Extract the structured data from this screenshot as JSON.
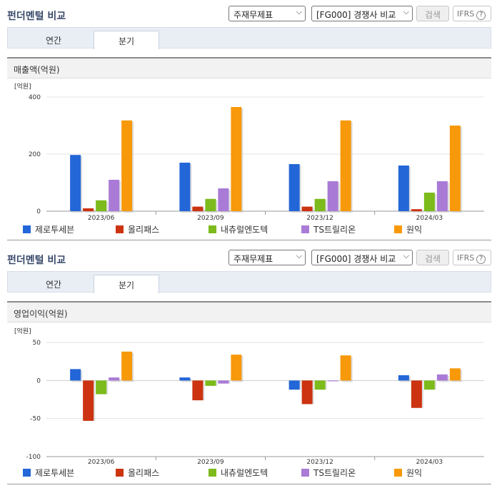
{
  "sections": [
    {
      "title": "펀더멘털 비교",
      "select1": "주재무제표",
      "select2": "[FG000] 경쟁사 비교",
      "search_label": "검색",
      "ifrs_label": "IFRS",
      "ifrs_help": "?",
      "tabs": [
        {
          "label": "연간"
        },
        {
          "label": "분기"
        }
      ],
      "active_tab": 1,
      "chart_title": "매출액(억원)"
    },
    {
      "title": "펀더멘털 비교",
      "select1": "주재무제표",
      "select2": "[FG000] 경쟁사 비교",
      "search_label": "검색",
      "ifrs_label": "IFRS",
      "ifrs_help": "?",
      "tabs": [
        {
          "label": "연간"
        },
        {
          "label": "분기"
        }
      ],
      "active_tab": 1,
      "chart_title": "영업이익(억원)"
    }
  ],
  "legend": [
    {
      "name": "제로투세븐",
      "color": "#2366d8"
    },
    {
      "name": "올리패스",
      "color": "#cc3311"
    },
    {
      "name": "내츄럴엔도텍",
      "color": "#7cbb1b"
    },
    {
      "name": "TS트릴리온",
      "color": "#a97bd6"
    },
    {
      "name": "원익",
      "color": "#f7990a"
    }
  ],
  "chart_data": [
    {
      "type": "bar",
      "title": "매출액(억원)",
      "unit_label": "[억원]",
      "categories": [
        "2023/06",
        "2023/09",
        "2023/12",
        "2024/03"
      ],
      "ylim": [
        0,
        400
      ],
      "yticks": [
        0,
        200,
        400
      ],
      "series": [
        {
          "name": "제로투세븐",
          "values": [
            197,
            170,
            165,
            160
          ]
        },
        {
          "name": "올리패스",
          "values": [
            10,
            16,
            16,
            7
          ]
        },
        {
          "name": "내츄럴엔도텍",
          "values": [
            38,
            43,
            43,
            65
          ]
        },
        {
          "name": "TS트릴리온",
          "values": [
            110,
            80,
            105,
            105
          ]
        },
        {
          "name": "원익",
          "values": [
            318,
            365,
            318,
            300
          ]
        }
      ]
    },
    {
      "type": "bar",
      "title": "영업이익(억원)",
      "unit_label": "[억원]",
      "categories": [
        "2023/06",
        "2023/09",
        "2023/12",
        "2024/03"
      ],
      "ylim": [
        -100,
        50
      ],
      "yticks": [
        -100,
        -50,
        0,
        50
      ],
      "series": [
        {
          "name": "제로투세븐",
          "values": [
            15,
            4,
            -12,
            7
          ]
        },
        {
          "name": "올리패스",
          "values": [
            -53,
            -26,
            -31,
            -36
          ]
        },
        {
          "name": "내츄럴엔도텍",
          "values": [
            -18,
            -7,
            -12,
            -12
          ]
        },
        {
          "name": "TS트릴리온",
          "values": [
            4,
            -4,
            -1,
            8
          ]
        },
        {
          "name": "원익",
          "values": [
            38,
            34,
            33,
            16
          ]
        }
      ]
    }
  ]
}
